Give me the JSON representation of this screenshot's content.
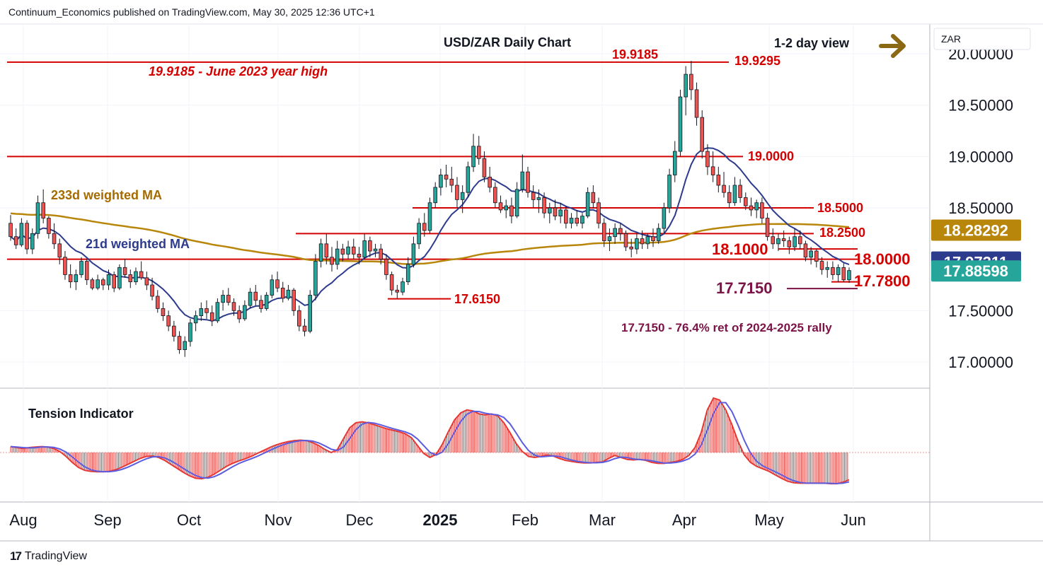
{
  "attribution": "Continuum_Economics published on TradingView.com, May 30, 2025 12:36 UTC+1",
  "footer": {
    "logo_icon": "tradingview-logo-icon",
    "brand": "TradingView"
  },
  "colors": {
    "candle_up": "#26a69a",
    "candle_down": "#ef5350",
    "level_line": "#d50000",
    "ma21": "#2d3b8c",
    "ma233": "#b8860b",
    "tension_fill": "#e53935",
    "tension_signal": "#5c5ce0",
    "annotation_red": "#d50000",
    "annotation_maroon": "#7b1346",
    "annotation_gold": "#a66b00",
    "arrow": "#8b6914"
  },
  "chart_data": {
    "type": "candlestick",
    "title": "USD/ZAR Daily Chart",
    "view_label": "1-2 day view",
    "view_icon": "right-arrow-icon",
    "y_axis": {
      "unit": "ZAR",
      "range": [
        16.65,
        20.15
      ],
      "ticks": [
        "20.00000",
        "19.50000",
        "19.00000",
        "18.50000",
        "17.50000",
        "17.00000"
      ]
    },
    "x_axis": {
      "labels": [
        "Aug",
        "Sep",
        "Oct",
        "Nov",
        "Dec",
        "2025",
        "Feb",
        "Mar",
        "Apr",
        "May",
        "Jun"
      ]
    },
    "price_labels": [
      {
        "text": "18.28292",
        "value": 18.28292,
        "color": "#b8860b"
      },
      {
        "text": "17.97311",
        "value": 17.97311,
        "color": "#2d3b8c"
      },
      {
        "text": "17.88598",
        "value": 17.88598,
        "color": "#26a69a"
      }
    ],
    "levels": [
      {
        "value": 19.9185,
        "label": "19.9185"
      },
      {
        "value": 19.0,
        "label": "19.0000"
      },
      {
        "value": 18.5,
        "label": "18.5000"
      },
      {
        "value": 18.25,
        "label": "18.2500"
      },
      {
        "value": 18.1,
        "label": "18.1000"
      },
      {
        "value": 18.0,
        "label": "18.0000"
      },
      {
        "value": 17.78,
        "label": "17.7800"
      },
      {
        "value": 17.715,
        "label": "17.7150"
      },
      {
        "value": 17.615,
        "label": "17.6150"
      },
      {
        "value": 19.9295,
        "label": "19.9295"
      }
    ],
    "annotations": [
      {
        "text": "19.9185 - June 2023 year high"
      },
      {
        "text": "17.7150 - 76.4% ret of 2024-2025 rally"
      },
      {
        "text": "233d weighted MA"
      },
      {
        "text": "21d weighted MA"
      }
    ],
    "candles_description": "OHLC approx per trading day",
    "ohlc": [
      [
        18.35,
        18.43,
        18.18,
        18.22
      ],
      [
        18.22,
        18.3,
        18.1,
        18.14
      ],
      [
        18.14,
        18.4,
        18.12,
        18.35
      ],
      [
        18.35,
        18.38,
        18.05,
        18.1
      ],
      [
        18.1,
        18.3,
        18.05,
        18.25
      ],
      [
        18.25,
        18.62,
        18.2,
        18.55
      ],
      [
        18.55,
        18.68,
        18.35,
        18.4
      ],
      [
        18.4,
        18.42,
        18.2,
        18.25
      ],
      [
        18.25,
        18.35,
        18.1,
        18.15
      ],
      [
        18.15,
        18.2,
        17.95,
        18.02
      ],
      [
        18.02,
        18.08,
        17.8,
        17.85
      ],
      [
        17.85,
        17.95,
        17.72,
        17.78
      ],
      [
        17.78,
        17.9,
        17.7,
        17.85
      ],
      [
        17.85,
        18.02,
        17.82,
        17.98
      ],
      [
        17.98,
        18.0,
        17.75,
        17.8
      ],
      [
        17.8,
        17.82,
        17.7,
        17.72
      ],
      [
        17.72,
        17.85,
        17.7,
        17.8
      ],
      [
        17.8,
        17.82,
        17.7,
        17.75
      ],
      [
        17.75,
        17.9,
        17.7,
        17.85
      ],
      [
        17.85,
        17.88,
        17.68,
        17.72
      ],
      [
        17.72,
        17.95,
        17.7,
        17.92
      ],
      [
        17.92,
        18.0,
        17.82,
        17.85
      ],
      [
        17.85,
        17.9,
        17.72,
        17.78
      ],
      [
        17.78,
        17.92,
        17.75,
        17.88
      ],
      [
        17.88,
        17.98,
        17.8,
        17.82
      ],
      [
        17.82,
        17.88,
        17.7,
        17.75
      ],
      [
        17.75,
        17.82,
        17.6,
        17.64
      ],
      [
        17.64,
        17.7,
        17.48,
        17.52
      ],
      [
        17.52,
        17.58,
        17.4,
        17.45
      ],
      [
        17.45,
        17.5,
        17.3,
        17.35
      ],
      [
        17.35,
        17.4,
        17.2,
        17.25
      ],
      [
        17.25,
        17.3,
        17.08,
        17.12
      ],
      [
        17.12,
        17.25,
        17.05,
        17.2
      ],
      [
        17.2,
        17.42,
        17.15,
        17.38
      ],
      [
        17.38,
        17.5,
        17.3,
        17.45
      ],
      [
        17.45,
        17.58,
        17.4,
        17.52
      ],
      [
        17.52,
        17.6,
        17.42,
        17.48
      ],
      [
        17.48,
        17.55,
        17.35,
        17.4
      ],
      [
        17.4,
        17.62,
        17.38,
        17.58
      ],
      [
        17.58,
        17.7,
        17.5,
        17.65
      ],
      [
        17.65,
        17.72,
        17.55,
        17.58
      ],
      [
        17.58,
        17.62,
        17.45,
        17.5
      ],
      [
        17.5,
        17.55,
        17.38,
        17.42
      ],
      [
        17.42,
        17.6,
        17.4,
        17.55
      ],
      [
        17.55,
        17.72,
        17.52,
        17.68
      ],
      [
        17.68,
        17.75,
        17.55,
        17.6
      ],
      [
        17.6,
        17.65,
        17.48,
        17.52
      ],
      [
        17.52,
        17.68,
        17.5,
        17.65
      ],
      [
        17.65,
        17.85,
        17.62,
        17.8
      ],
      [
        17.8,
        17.88,
        17.68,
        17.72
      ],
      [
        17.72,
        17.78,
        17.58,
        17.62
      ],
      [
        17.62,
        17.75,
        17.6,
        17.7
      ],
      [
        17.7,
        17.72,
        17.45,
        17.5
      ],
      [
        17.5,
        17.55,
        17.3,
        17.35
      ],
      [
        17.35,
        17.42,
        17.25,
        17.3
      ],
      [
        17.3,
        17.7,
        17.28,
        17.65
      ],
      [
        17.65,
        18.05,
        17.6,
        17.98
      ],
      [
        17.98,
        18.2,
        17.92,
        18.15
      ],
      [
        18.15,
        18.25,
        17.95,
        18.02
      ],
      [
        18.02,
        18.12,
        17.88,
        17.95
      ],
      [
        17.95,
        18.18,
        17.9,
        18.1
      ],
      [
        18.1,
        18.15,
        17.98,
        18.05
      ],
      [
        18.05,
        18.18,
        18.0,
        18.12
      ],
      [
        18.12,
        18.2,
        18.0,
        18.05
      ],
      [
        18.05,
        18.12,
        17.95,
        18.02
      ],
      [
        18.02,
        18.25,
        18.0,
        18.18
      ],
      [
        18.18,
        18.22,
        18.02,
        18.08
      ],
      [
        18.08,
        18.15,
        18.02,
        18.1
      ],
      [
        18.1,
        18.15,
        17.95,
        18.0
      ],
      [
        18.0,
        18.05,
        17.8,
        17.85
      ],
      [
        17.85,
        17.88,
        17.65,
        17.7
      ],
      [
        17.7,
        17.75,
        17.62,
        17.68
      ],
      [
        17.68,
        17.82,
        17.65,
        17.78
      ],
      [
        17.78,
        18.02,
        17.75,
        17.95
      ],
      [
        17.95,
        18.22,
        17.92,
        18.15
      ],
      [
        18.15,
        18.4,
        18.1,
        18.35
      ],
      [
        18.35,
        18.45,
        18.22,
        18.28
      ],
      [
        18.28,
        18.6,
        18.25,
        18.55
      ],
      [
        18.55,
        18.75,
        18.5,
        18.7
      ],
      [
        18.7,
        18.88,
        18.62,
        18.82
      ],
      [
        18.82,
        18.92,
        18.7,
        18.78
      ],
      [
        18.78,
        18.9,
        18.65,
        18.72
      ],
      [
        18.72,
        18.8,
        18.5,
        18.58
      ],
      [
        18.58,
        18.72,
        18.45,
        18.65
      ],
      [
        18.65,
        18.95,
        18.6,
        18.9
      ],
      [
        18.9,
        19.22,
        18.85,
        19.1
      ],
      [
        19.1,
        19.2,
        18.92,
        18.98
      ],
      [
        18.98,
        19.05,
        18.75,
        18.8
      ],
      [
        18.8,
        18.9,
        18.65,
        18.7
      ],
      [
        18.7,
        18.75,
        18.5,
        18.55
      ],
      [
        18.55,
        18.62,
        18.45,
        18.48
      ],
      [
        18.48,
        18.58,
        18.4,
        18.52
      ],
      [
        18.52,
        18.6,
        18.35,
        18.42
      ],
      [
        18.42,
        18.75,
        18.4,
        18.68
      ],
      [
        18.68,
        19.02,
        18.65,
        18.85
      ],
      [
        18.85,
        18.9,
        18.6,
        18.65
      ],
      [
        18.65,
        18.72,
        18.5,
        18.58
      ],
      [
        18.58,
        18.68,
        18.45,
        18.6
      ],
      [
        18.6,
        18.65,
        18.4,
        18.45
      ],
      [
        18.45,
        18.55,
        18.35,
        18.5
      ],
      [
        18.5,
        18.58,
        18.38,
        18.42
      ],
      [
        18.42,
        18.55,
        18.35,
        18.48
      ],
      [
        18.48,
        18.52,
        18.3,
        18.35
      ],
      [
        18.35,
        18.45,
        18.3,
        18.4
      ],
      [
        18.4,
        18.48,
        18.32,
        18.35
      ],
      [
        18.35,
        18.45,
        18.3,
        18.42
      ],
      [
        18.42,
        18.7,
        18.4,
        18.65
      ],
      [
        18.65,
        18.72,
        18.5,
        18.55
      ],
      [
        18.55,
        18.6,
        18.3,
        18.35
      ],
      [
        18.35,
        18.4,
        18.12,
        18.18
      ],
      [
        18.18,
        18.3,
        18.08,
        18.22
      ],
      [
        18.22,
        18.35,
        18.15,
        18.3
      ],
      [
        18.3,
        18.35,
        18.18,
        18.25
      ],
      [
        18.25,
        18.28,
        18.08,
        18.12
      ],
      [
        18.12,
        18.2,
        18.02,
        18.1
      ],
      [
        18.1,
        18.25,
        18.05,
        18.2
      ],
      [
        18.2,
        18.28,
        18.1,
        18.15
      ],
      [
        18.15,
        18.25,
        18.1,
        18.22
      ],
      [
        18.22,
        18.3,
        18.12,
        18.18
      ],
      [
        18.18,
        18.35,
        18.15,
        18.3
      ],
      [
        18.3,
        18.55,
        18.25,
        18.5
      ],
      [
        18.5,
        18.88,
        18.45,
        18.82
      ],
      [
        18.82,
        19.15,
        18.75,
        19.05
      ],
      [
        19.05,
        19.65,
        19.0,
        19.58
      ],
      [
        19.58,
        19.88,
        19.4,
        19.8
      ],
      [
        19.8,
        19.93,
        19.55,
        19.65
      ],
      [
        19.65,
        19.72,
        19.3,
        19.38
      ],
      [
        19.38,
        19.45,
        18.98,
        19.05
      ],
      [
        19.05,
        19.12,
        18.82,
        18.9
      ],
      [
        18.9,
        19.05,
        18.75,
        18.82
      ],
      [
        18.82,
        18.9,
        18.65,
        18.72
      ],
      [
        18.72,
        18.85,
        18.6,
        18.65
      ],
      [
        18.65,
        18.72,
        18.5,
        18.55
      ],
      [
        18.55,
        18.8,
        18.52,
        18.72
      ],
      [
        18.72,
        18.78,
        18.55,
        18.6
      ],
      [
        18.6,
        18.65,
        18.48,
        18.52
      ],
      [
        18.52,
        18.6,
        18.42,
        18.48
      ],
      [
        18.48,
        18.58,
        18.4,
        18.55
      ],
      [
        18.55,
        18.6,
        18.35,
        18.4
      ],
      [
        18.4,
        18.45,
        18.18,
        18.22
      ],
      [
        18.22,
        18.3,
        18.1,
        18.15
      ],
      [
        18.15,
        18.25,
        18.08,
        18.2
      ],
      [
        18.2,
        18.28,
        18.12,
        18.18
      ],
      [
        18.18,
        18.22,
        18.05,
        18.12
      ],
      [
        18.12,
        18.3,
        18.08,
        18.22
      ],
      [
        18.22,
        18.28,
        18.1,
        18.15
      ],
      [
        18.15,
        18.18,
        17.98,
        18.02
      ],
      [
        18.02,
        18.12,
        17.95,
        18.08
      ],
      [
        18.08,
        18.1,
        17.92,
        17.98
      ],
      [
        17.98,
        18.02,
        17.85,
        17.9
      ],
      [
        17.9,
        17.98,
        17.82,
        17.92
      ],
      [
        17.92,
        17.98,
        17.8,
        17.85
      ],
      [
        17.85,
        17.95,
        17.78,
        17.92
      ],
      [
        17.92,
        17.96,
        17.78,
        17.8
      ],
      [
        17.8,
        17.92,
        17.77,
        17.89
      ]
    ],
    "tension": [
      0.12,
      0.1,
      0.08,
      0.1,
      0.11,
      0.12,
      0.11,
      0.08,
      0.02,
      -0.08,
      -0.2,
      -0.3,
      -0.36,
      -0.38,
      -0.39,
      -0.39,
      -0.38,
      -0.35,
      -0.3,
      -0.24,
      -0.18,
      -0.12,
      -0.08,
      -0.07,
      -0.1,
      -0.16,
      -0.24,
      -0.32,
      -0.4,
      -0.47,
      -0.52,
      -0.53,
      -0.5,
      -0.44,
      -0.36,
      -0.28,
      -0.22,
      -0.17,
      -0.13,
      -0.08,
      -0.02,
      0.04,
      0.1,
      0.15,
      0.19,
      0.22,
      0.24,
      0.25,
      0.24,
      0.2,
      0.14,
      0.06,
      0.0,
      0.06,
      0.28,
      0.5,
      0.6,
      0.62,
      0.6,
      0.56,
      0.52,
      0.48,
      0.45,
      0.42,
      0.38,
      0.3,
      0.14,
      -0.02,
      -0.1,
      -0.04,
      0.16,
      0.42,
      0.66,
      0.8,
      0.86,
      0.84,
      0.78,
      0.76,
      0.78,
      0.74,
      0.6,
      0.4,
      0.18,
      0.02,
      -0.08,
      -0.1,
      -0.08,
      -0.05,
      -0.07,
      -0.12,
      -0.16,
      -0.18,
      -0.2,
      -0.21,
      -0.21,
      -0.2,
      -0.19,
      -0.12,
      -0.06,
      -0.1,
      -0.14,
      -0.15,
      -0.14,
      -0.16,
      -0.2,
      -0.22,
      -0.22,
      -0.2,
      -0.18,
      -0.14,
      -0.06,
      0.1,
      0.4,
      0.86,
      1.1,
      1.06,
      0.86,
      0.56,
      0.22,
      -0.05,
      -0.2,
      -0.28,
      -0.33,
      -0.38,
      -0.45,
      -0.52,
      -0.58,
      -0.61,
      -0.62,
      -0.62,
      -0.62,
      -0.62,
      -0.62,
      -0.63,
      -0.63,
      -0.6,
      -0.55
    ]
  }
}
